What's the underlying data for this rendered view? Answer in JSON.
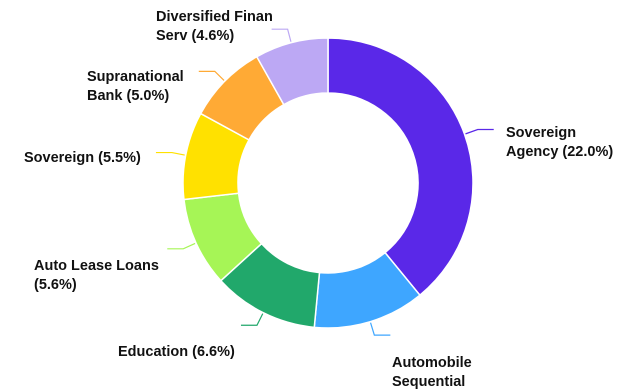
{
  "chart_data": {
    "type": "pie",
    "subtype": "donut",
    "title": "",
    "slices": [
      {
        "line1": "Sovereign",
        "line2": "Agency (22.0%)",
        "value": 22.0,
        "color": "#5a28e8"
      },
      {
        "line1": "Automobile",
        "line2": "Sequential",
        "value": 7.0,
        "color": "#3ea6ff"
      },
      {
        "line1": "Education (6.6%)",
        "line2": "",
        "value": 6.6,
        "color": "#21a86b"
      },
      {
        "line1": "Auto Lease Loans",
        "line2": "(5.6%)",
        "value": 5.6,
        "color": "#a6f556"
      },
      {
        "line1": "Sovereign (5.5%)",
        "line2": "",
        "value": 5.5,
        "color": "#ffe100"
      },
      {
        "line1": "Supranational",
        "line2": "Bank (5.0%)",
        "value": 5.0,
        "color": "#ffaa35"
      },
      {
        "line1": "Diversified Finan",
        "line2": "Serv (4.6%)",
        "value": 4.6,
        "color": "#bca8f4"
      }
    ]
  }
}
